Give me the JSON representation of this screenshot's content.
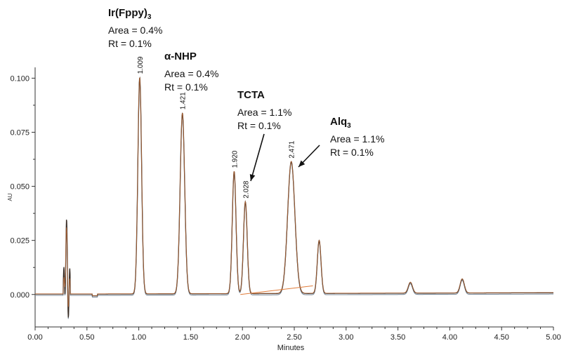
{
  "chart_data": {
    "type": "line",
    "title": "",
    "xlabel": "Minutes",
    "ylabel": "AU",
    "xlim": [
      0.0,
      5.0
    ],
    "ylim": [
      -0.015,
      0.105
    ],
    "x_ticks": [
      "0.00",
      "0.50",
      "1.00",
      "1.50",
      "2.00",
      "2.50",
      "3.00",
      "3.50",
      "4.00",
      "4.50",
      "5.00"
    ],
    "y_ticks": [
      "0.000",
      "0.025",
      "0.050",
      "0.075",
      "0.100"
    ],
    "grid": false,
    "series_colors": [
      "#3a2e26",
      "#7a8a9a",
      "#e07b39"
    ],
    "peaks": [
      {
        "rt": 0.3,
        "height": 0.0265,
        "label": ""
      },
      {
        "rt": 1.009,
        "height": 0.1,
        "label": "1.009"
      },
      {
        "rt": 1.421,
        "height": 0.0835,
        "label": "1.421"
      },
      {
        "rt": 1.92,
        "height": 0.0565,
        "label": "1.920"
      },
      {
        "rt": 2.028,
        "height": 0.0425,
        "label": "2.028"
      },
      {
        "rt": 2.471,
        "height": 0.061,
        "label": "2.471"
      },
      {
        "rt": 2.74,
        "height": 0.0245,
        "label": ""
      },
      {
        "rt": 3.62,
        "height": 0.005,
        "label": ""
      },
      {
        "rt": 4.12,
        "height": 0.0065,
        "label": ""
      }
    ],
    "annotations": [
      {
        "name": "Ir(Fppy)",
        "sub": "3",
        "area": "Area = 0.4%",
        "rt": "Rt = 0.1%"
      },
      {
        "name": "α-NHP",
        "sub": "",
        "area": "Area = 0.4%",
        "rt": "Rt = 0.1%"
      },
      {
        "name": "TCTA",
        "sub": "",
        "area": "Area = 1.1%",
        "rt": "Rt = 0.1%"
      },
      {
        "name": "Alq",
        "sub": "3",
        "area": "Area = 1.1%",
        "rt": "Rt = 0.1%"
      }
    ]
  }
}
